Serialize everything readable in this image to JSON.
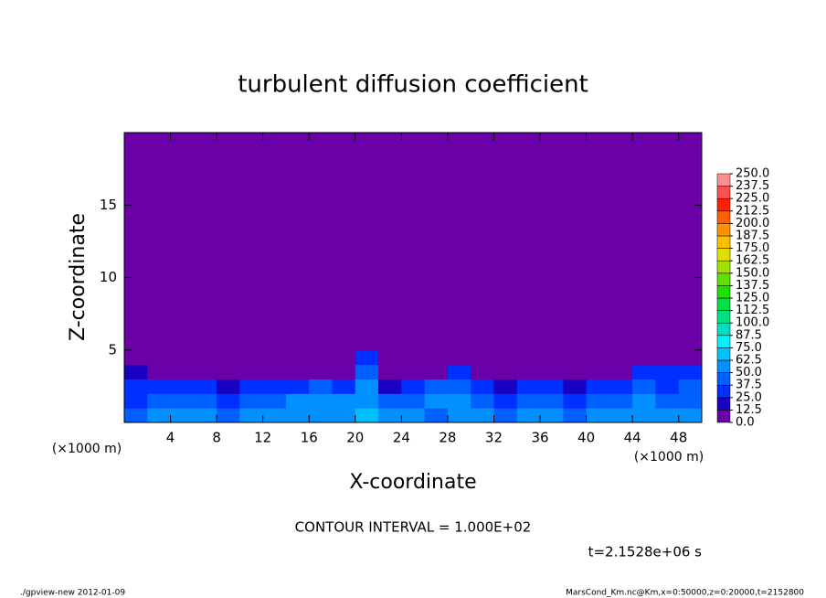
{
  "chart_data": {
    "type": "contour",
    "title": "turbulent diffusion coefficient",
    "xlabel": "X-coordinate",
    "ylabel": "Z-coordinate",
    "xunit_left": "(×1000 m)",
    "xunit_right": "(×1000 m)",
    "contour_interval": "CONTOUR INTERVAL = 1.000E+02",
    "time_label": "t=2.1528e+06 s",
    "footer_left": "./gpview-new  2012-01-09",
    "footer_right": "MarsCond_Km.nc@Km,x=0:50000,z=0:20000,t=2152800",
    "xlim": [
      0,
      50
    ],
    "ylim": [
      0,
      20
    ],
    "xticks": [
      4,
      8,
      12,
      16,
      20,
      24,
      28,
      32,
      36,
      40,
      44,
      48
    ],
    "yticks": [
      5,
      10,
      15
    ],
    "xbins": [
      0,
      2,
      4,
      6,
      8,
      10,
      12,
      14,
      16,
      18,
      20,
      22,
      24,
      26,
      28,
      30,
      32,
      34,
      36,
      38,
      40,
      42,
      44,
      46,
      48,
      50
    ],
    "zbins": [
      0,
      1,
      2,
      3,
      4,
      5,
      6,
      7
    ],
    "values": [
      [
        45,
        50,
        55,
        50,
        45,
        50,
        55,
        60,
        60,
        55,
        70,
        55,
        50,
        45,
        60,
        55,
        45,
        50,
        55,
        45,
        50,
        55,
        60,
        55,
        50
      ],
      [
        35,
        40,
        45,
        40,
        35,
        40,
        45,
        50,
        55,
        50,
        60,
        45,
        40,
        50,
        55,
        40,
        35,
        40,
        45,
        35,
        40,
        45,
        50,
        45,
        45
      ],
      [
        25,
        30,
        30,
        25,
        20,
        25,
        30,
        35,
        40,
        30,
        50,
        20,
        25,
        40,
        45,
        25,
        20,
        30,
        25,
        20,
        30,
        35,
        40,
        35,
        40
      ],
      [
        15,
        10,
        5,
        5,
        5,
        5,
        5,
        5,
        10,
        5,
        40,
        5,
        5,
        10,
        30,
        5,
        5,
        5,
        5,
        5,
        5,
        10,
        25,
        30,
        30
      ],
      [
        5,
        0,
        0,
        0,
        0,
        0,
        0,
        0,
        0,
        10,
        25,
        0,
        0,
        0,
        10,
        0,
        0,
        0,
        0,
        0,
        0,
        0,
        0,
        5,
        10
      ],
      [
        10,
        0,
        0,
        0,
        0,
        0,
        0,
        0,
        0,
        5,
        10,
        0,
        0,
        0,
        0,
        0,
        0,
        0,
        0,
        0,
        0,
        0,
        0,
        0,
        5
      ],
      [
        5,
        0,
        0,
        0,
        0,
        0,
        0,
        0,
        0,
        5,
        5,
        0,
        0,
        0,
        0,
        0,
        0,
        0,
        0,
        0,
        0,
        0,
        0,
        0,
        5
      ]
    ],
    "cticks": [
      {
        "value": 0,
        "label": "0.0"
      },
      {
        "value": 12.5,
        "label": "12.5"
      },
      {
        "value": 25,
        "label": "25.0"
      },
      {
        "value": 37.5,
        "label": "37.5"
      },
      {
        "value": 50,
        "label": "50.0"
      },
      {
        "value": 62.5,
        "label": "62.5"
      },
      {
        "value": 75,
        "label": "75.0"
      },
      {
        "value": 87.5,
        "label": "87.5"
      },
      {
        "value": 100,
        "label": "100.0"
      },
      {
        "value": 112.5,
        "label": "112.5"
      },
      {
        "value": 125,
        "label": "125.0"
      },
      {
        "value": 137.5,
        "label": "137.5"
      },
      {
        "value": 150,
        "label": "150.0"
      },
      {
        "value": 162.5,
        "label": "162.5"
      },
      {
        "value": 175,
        "label": "175.0"
      },
      {
        "value": 187.5,
        "label": "187.5"
      },
      {
        "value": 200,
        "label": "200.0"
      },
      {
        "value": 212.5,
        "label": "212.5"
      },
      {
        "value": 225,
        "label": "225.0"
      },
      {
        "value": 237.5,
        "label": "237.5"
      },
      {
        "value": 250,
        "label": "250.0"
      }
    ],
    "colors": [
      "#6a00a8",
      "#1a00c0",
      "#0030ff",
      "#0060ff",
      "#0090ff",
      "#00c0ff",
      "#00f0ff",
      "#00e0c0",
      "#00e080",
      "#00e040",
      "#20e000",
      "#60e000",
      "#a0e000",
      "#e0e000",
      "#ffc000",
      "#ff9000",
      "#ff6000",
      "#ff2000",
      "#ff5050",
      "#ff9090"
    ]
  }
}
